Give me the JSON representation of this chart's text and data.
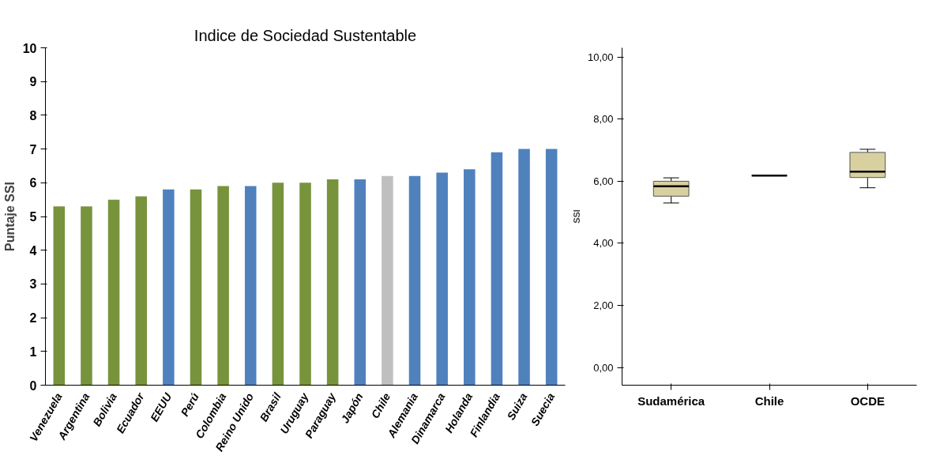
{
  "chart_data": [
    {
      "type": "bar",
      "title": "Indice de Sociedad Sustentable",
      "ylabel": "Puntaje SSI",
      "categories": [
        "Venezuela",
        "Argentina",
        "Bolivia",
        "Ecuador",
        "EEUU",
        "Perú",
        "Colombia",
        "Reino Unido",
        "Brasil",
        "Uruguay",
        "Paraguay",
        "Japón",
        "Chile",
        "Alemania",
        "Dinamarca",
        "Holanda",
        "Finlandia",
        "Suiza",
        "Suecia"
      ],
      "values": [
        5.3,
        5.3,
        5.5,
        5.6,
        5.8,
        5.8,
        5.9,
        5.9,
        6.0,
        6.0,
        6.1,
        6.1,
        6.2,
        6.2,
        6.3,
        6.4,
        6.9,
        7.0,
        7.0
      ],
      "colors": [
        "#77933c",
        "#77933c",
        "#77933c",
        "#77933c",
        "#4f81bd",
        "#77933c",
        "#77933c",
        "#4f81bd",
        "#77933c",
        "#77933c",
        "#77933c",
        "#4f81bd",
        "#bfbfbf",
        "#4f81bd",
        "#4f81bd",
        "#4f81bd",
        "#4f81bd",
        "#4f81bd",
        "#4f81bd"
      ],
      "ylim": [
        0,
        10
      ],
      "yticks": [
        0,
        1,
        2,
        3,
        4,
        5,
        6,
        7,
        8,
        9,
        10
      ],
      "grid": false
    },
    {
      "type": "box",
      "ylabel": "SSI",
      "categories": [
        "Sudamérica",
        "Chile",
        "OCDE"
      ],
      "boxes": [
        {
          "low": 5.3,
          "q1": 5.52,
          "median": 5.84,
          "q3": 6.0,
          "high": 6.11
        },
        {
          "low": 6.18,
          "q1": 6.18,
          "median": 6.18,
          "q3": 6.18,
          "high": 6.18
        },
        {
          "low": 5.79,
          "q1": 6.12,
          "median": 6.31,
          "q3": 6.93,
          "high": 7.03
        }
      ],
      "color": "#d8d09f",
      "ylim": [
        -0.57,
        10.3
      ],
      "yticks": [
        {
          "value": 0,
          "label": "0,00"
        },
        {
          "value": 2,
          "label": "2,00"
        },
        {
          "value": 4,
          "label": "4,00"
        },
        {
          "value": 6,
          "label": "6,00"
        },
        {
          "value": 8,
          "label": "8,00"
        },
        {
          "value": 10,
          "label": "10,00"
        }
      ],
      "grid": false
    }
  ]
}
